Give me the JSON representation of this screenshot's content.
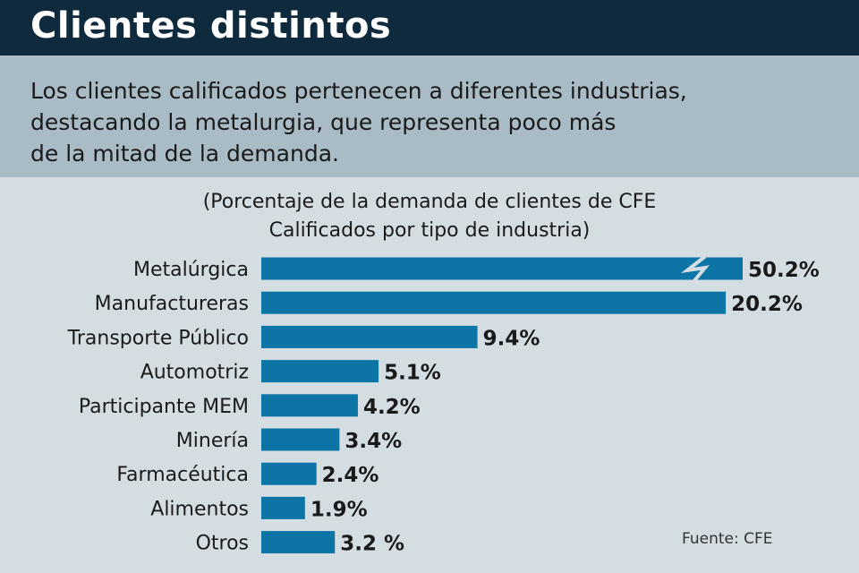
{
  "header": {
    "title": "Clientes distintos"
  },
  "intro": {
    "line1": "Los clientes calificados pertenecen a diferentes industrias,",
    "line2": "destacando la metalurgia, que representa poco más",
    "line3": "de la mitad de la demanda."
  },
  "subtitle": {
    "line1": "(Porcentaje de la demanda de clientes de CFE",
    "line2": "Calificados por tipo de industria)"
  },
  "source": "Fuente: CFE",
  "colors": {
    "bar": "#0d74a6",
    "header_bg": "#0f2a3d",
    "intro_bg": "#a9bcc6",
    "chart_bg": "#d3dde2"
  },
  "chart_data": {
    "type": "bar",
    "orientation": "horizontal",
    "axis_break_on": "Metalúrgica",
    "categories": [
      "Metalúrgica",
      "Manufactureras",
      "Transporte Público",
      "Automotriz",
      "Participante MEM",
      "Minería",
      "Farmacéutica",
      "Alimentos",
      "Otros"
    ],
    "values": [
      50.2,
      20.2,
      9.4,
      5.1,
      4.2,
      3.4,
      2.4,
      1.9,
      3.2
    ],
    "value_labels": [
      "50.2%",
      "20.2%",
      "9.4%",
      "5.1%",
      "4.2%",
      "3.4%",
      "2.4%",
      "1.9%",
      "3.2 %"
    ],
    "title": "",
    "xlabel": "",
    "ylabel": ""
  }
}
